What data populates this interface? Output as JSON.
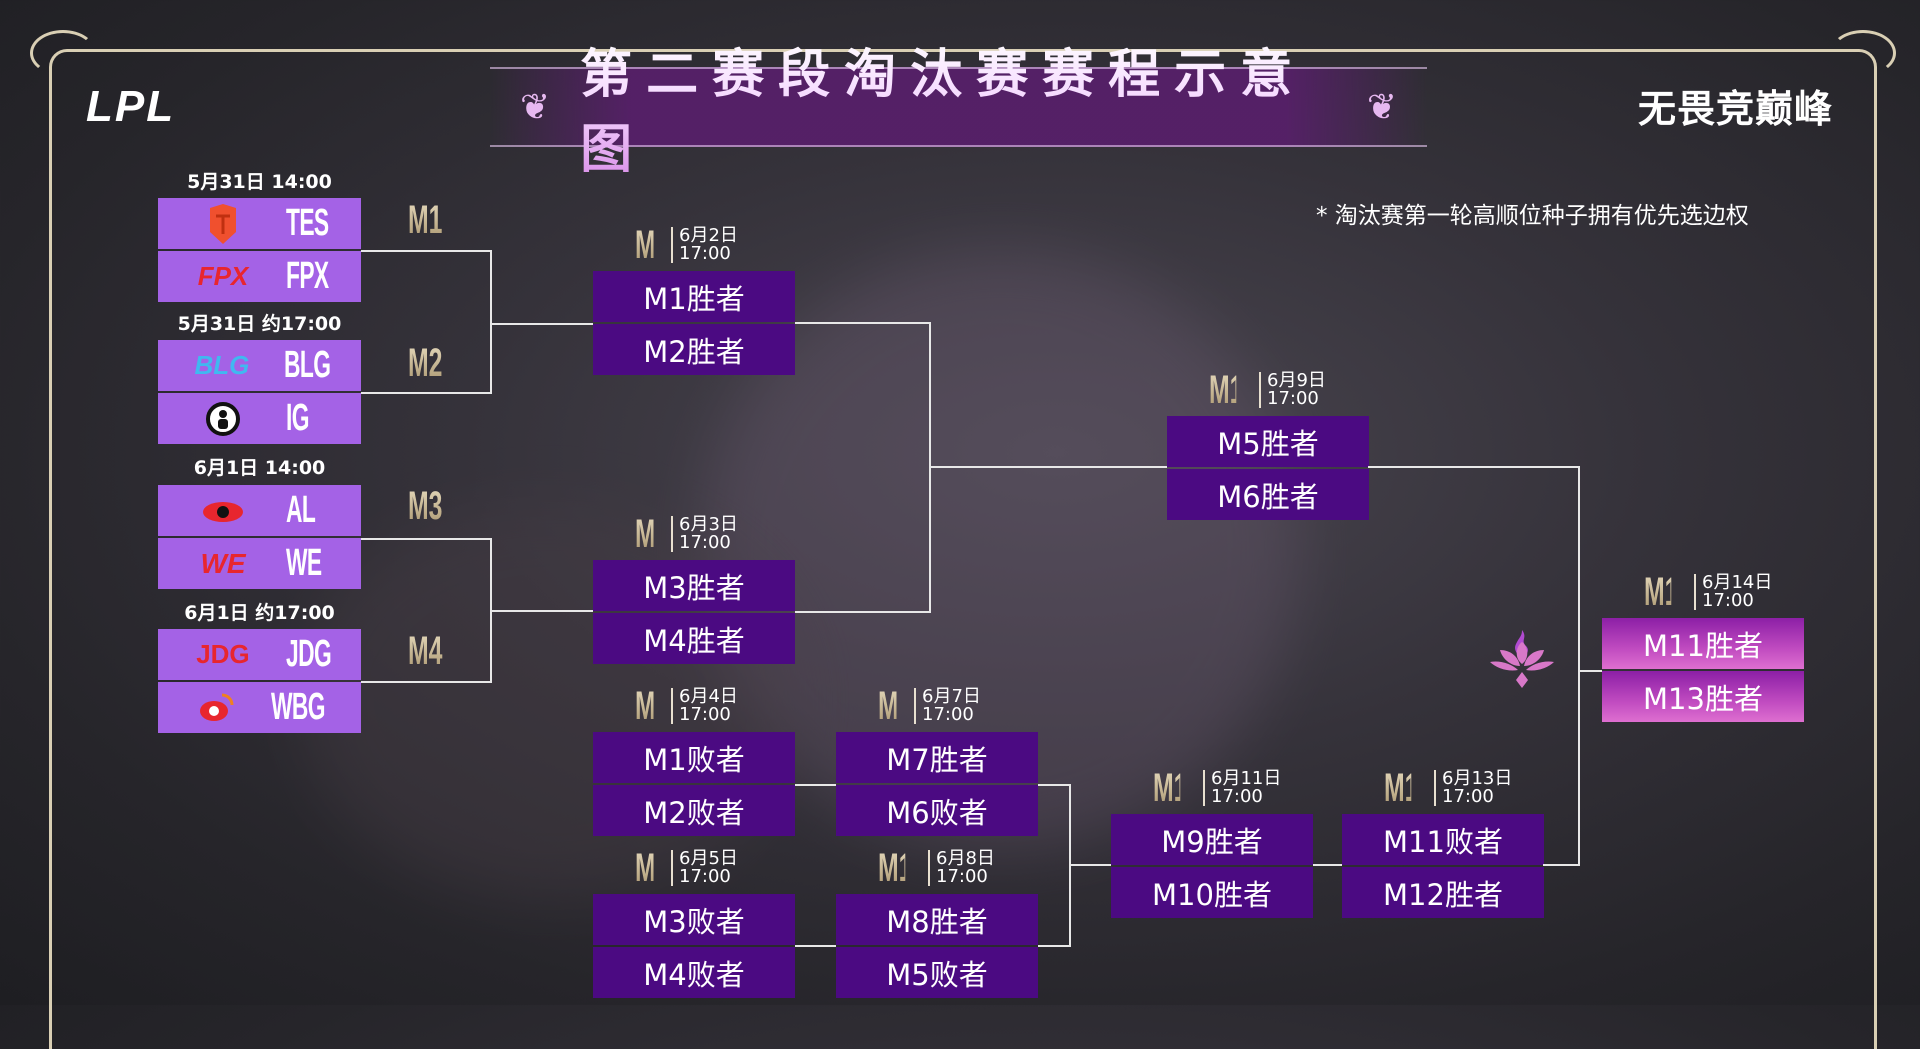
{
  "header": {
    "logo": "LPL",
    "title": "第二赛段淘汰赛赛程示意图",
    "ornament": "❦",
    "slogan": "无畏竞巅峰"
  },
  "note": "* 淘汰赛第一轮高顺位种子拥有优先选边权",
  "groups": [
    {
      "label": "M1",
      "date": "5月31日 14:00",
      "teams": [
        {
          "name": "TES",
          "logo": "tes-logo"
        },
        {
          "name": "FPX",
          "logo": "fpx-logo"
        }
      ]
    },
    {
      "label": "M2",
      "date": "5月31日 约17:00",
      "teams": [
        {
          "name": "BLG",
          "logo": "blg-logo"
        },
        {
          "name": "IG",
          "logo": "ig-logo"
        }
      ]
    },
    {
      "label": "M3",
      "date": "6月1日 14:00",
      "teams": [
        {
          "name": "AL",
          "logo": "al-logo"
        },
        {
          "name": "WE",
          "logo": "we-logo"
        }
      ]
    },
    {
      "label": "M4",
      "date": "6月1日 约17:00",
      "teams": [
        {
          "name": "JDG",
          "logo": "jdg-logo"
        },
        {
          "name": "WBG",
          "logo": "wbg-logo"
        }
      ]
    }
  ],
  "matches": [
    {
      "id": "M5",
      "date": "6月2日",
      "time": "17:00",
      "slots": [
        "M1胜者",
        "M2胜者"
      ]
    },
    {
      "id": "M6",
      "date": "6月3日",
      "time": "17:00",
      "slots": [
        "M3胜者",
        "M4胜者"
      ]
    },
    {
      "id": "M7",
      "date": "6月4日",
      "time": "17:00",
      "slots": [
        "M1败者",
        "M2败者"
      ]
    },
    {
      "id": "M8",
      "date": "6月5日",
      "time": "17:00",
      "slots": [
        "M3败者",
        "M4败者"
      ]
    },
    {
      "id": "M9",
      "date": "6月7日",
      "time": "17:00",
      "slots": [
        "M7胜者",
        "M6败者"
      ]
    },
    {
      "id": "M10",
      "date": "6月8日",
      "time": "17:00",
      "slots": [
        "M8胜者",
        "M5败者"
      ]
    },
    {
      "id": "M11",
      "date": "6月9日",
      "time": "17:00",
      "slots": [
        "M5胜者",
        "M6胜者"
      ]
    },
    {
      "id": "M12",
      "date": "6月11日",
      "time": "17:00",
      "slots": [
        "M9胜者",
        "M10胜者"
      ]
    },
    {
      "id": "M13",
      "date": "6月13日",
      "time": "17:00",
      "slots": [
        "M11败者",
        "M12胜者"
      ]
    },
    {
      "id": "M14",
      "date": "6月14日",
      "time": "17:00",
      "slots": [
        "M11胜者",
        "M13胜者"
      ]
    }
  ],
  "colors": {
    "team_box": "#a462e6",
    "match_box": "#4b0a82",
    "final_box": "#c04bc0",
    "label_gold": "#c8b48c"
  }
}
